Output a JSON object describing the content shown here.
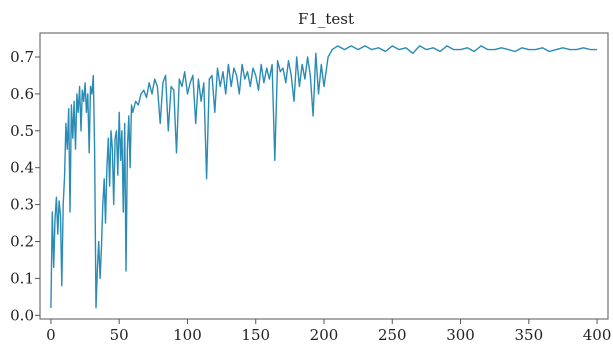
{
  "chart_data": {
    "type": "line",
    "title": "F1_test",
    "xlabel": "",
    "ylabel": "",
    "xlim": [
      -8,
      408
    ],
    "ylim": [
      -0.01,
      0.765
    ],
    "xticks": [
      0,
      50,
      100,
      150,
      200,
      250,
      300,
      350,
      400
    ],
    "yticks": [
      0.0,
      0.1,
      0.2,
      0.3,
      0.4,
      0.5,
      0.6,
      0.7
    ],
    "ytick_labels": [
      "0.0",
      "0.1",
      "0.2",
      "0.3",
      "0.4",
      "0.5",
      "0.6",
      "0.7"
    ],
    "grid": false,
    "line_color": "#2a8bb5",
    "series": [
      {
        "x": [
          0,
          1,
          2,
          3,
          4,
          5,
          6,
          7,
          8,
          9,
          10,
          11,
          12,
          13,
          14,
          15,
          16,
          17,
          18,
          19,
          20,
          21,
          22,
          23,
          24,
          25,
          26,
          27,
          28,
          29,
          30,
          31,
          32,
          33,
          34,
          35,
          36,
          37,
          38,
          39,
          40,
          41,
          42,
          43,
          44,
          45,
          46,
          47,
          48,
          49,
          50,
          51,
          52,
          53,
          54,
          55,
          56,
          57,
          58,
          59,
          60,
          62,
          64,
          66,
          68,
          70,
          72,
          74,
          76,
          78,
          80,
          82,
          84,
          86,
          88,
          90,
          92,
          94,
          96,
          98,
          100,
          102,
          104,
          106,
          108,
          110,
          112,
          114,
          116,
          118,
          120,
          122,
          124,
          126,
          128,
          130,
          132,
          134,
          136,
          138,
          140,
          142,
          144,
          146,
          148,
          150,
          152,
          154,
          156,
          158,
          160,
          162,
          164,
          166,
          168,
          170,
          172,
          174,
          176,
          178,
          180,
          182,
          184,
          186,
          188,
          190,
          192,
          194,
          196,
          198,
          200,
          203,
          206,
          210,
          215,
          220,
          225,
          230,
          235,
          240,
          245,
          250,
          255,
          260,
          265,
          270,
          275,
          280,
          285,
          290,
          295,
          300,
          305,
          310,
          315,
          320,
          325,
          330,
          335,
          340,
          345,
          350,
          355,
          360,
          365,
          370,
          375,
          380,
          385,
          390,
          395,
          400
        ],
        "y": [
          0.02,
          0.28,
          0.13,
          0.26,
          0.32,
          0.22,
          0.31,
          0.27,
          0.08,
          0.3,
          0.38,
          0.52,
          0.45,
          0.56,
          0.28,
          0.57,
          0.48,
          0.58,
          0.45,
          0.6,
          0.55,
          0.62,
          0.5,
          0.61,
          0.58,
          0.63,
          0.55,
          0.6,
          0.44,
          0.62,
          0.6,
          0.65,
          0.45,
          0.02,
          0.12,
          0.2,
          0.1,
          0.18,
          0.3,
          0.37,
          0.25,
          0.4,
          0.48,
          0.35,
          0.5,
          0.45,
          0.3,
          0.48,
          0.5,
          0.38,
          0.55,
          0.42,
          0.5,
          0.28,
          0.52,
          0.12,
          0.45,
          0.54,
          0.4,
          0.57,
          0.55,
          0.58,
          0.57,
          0.6,
          0.61,
          0.59,
          0.63,
          0.6,
          0.64,
          0.62,
          0.52,
          0.63,
          0.65,
          0.5,
          0.62,
          0.61,
          0.44,
          0.64,
          0.62,
          0.66,
          0.6,
          0.63,
          0.65,
          0.52,
          0.64,
          0.58,
          0.63,
          0.37,
          0.64,
          0.65,
          0.55,
          0.67,
          0.62,
          0.66,
          0.6,
          0.68,
          0.62,
          0.67,
          0.65,
          0.6,
          0.68,
          0.64,
          0.66,
          0.62,
          0.67,
          0.65,
          0.61,
          0.68,
          0.63,
          0.67,
          0.64,
          0.68,
          0.42,
          0.69,
          0.66,
          0.67,
          0.63,
          0.69,
          0.65,
          0.58,
          0.7,
          0.62,
          0.68,
          0.64,
          0.7,
          0.65,
          0.54,
          0.71,
          0.6,
          0.68,
          0.62,
          0.7,
          0.72,
          0.73,
          0.72,
          0.73,
          0.72,
          0.73,
          0.72,
          0.725,
          0.715,
          0.73,
          0.72,
          0.725,
          0.71,
          0.73,
          0.72,
          0.725,
          0.715,
          0.73,
          0.72,
          0.72,
          0.725,
          0.715,
          0.73,
          0.72,
          0.72,
          0.725,
          0.72,
          0.715,
          0.725,
          0.72,
          0.72,
          0.725,
          0.715,
          0.72,
          0.725,
          0.72,
          0.72,
          0.725,
          0.72,
          0.72
        ]
      }
    ]
  }
}
